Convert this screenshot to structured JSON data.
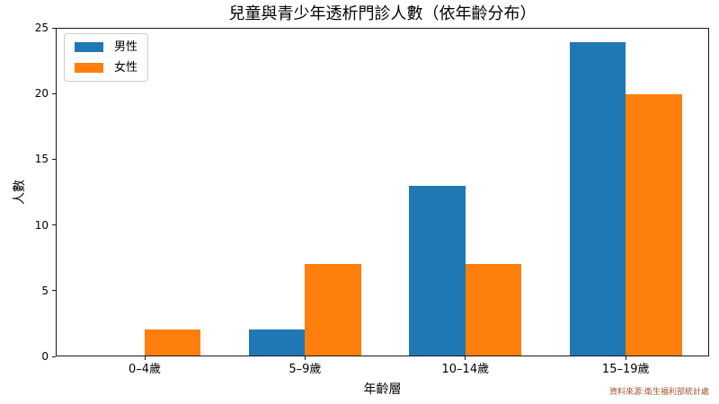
{
  "chart_data": {
    "type": "bar",
    "title": "兒童與青少年透析門診人數（依年齡分布）",
    "categories": [
      "0–4歲",
      "5–9歲",
      "10–14歲",
      "15–19歲"
    ],
    "series": [
      {
        "name": "男性",
        "color": "#1f77b4",
        "values": [
          0,
          2,
          13,
          24
        ]
      },
      {
        "name": "女性",
        "color": "#ff7f0e",
        "values": [
          2,
          7,
          7,
          20
        ]
      }
    ],
    "xlabel": "年齡層",
    "ylabel": "人數",
    "ylim": [
      0,
      25
    ],
    "yticks": [
      0,
      5,
      10,
      15,
      20,
      25
    ],
    "legend_position": "upper left",
    "grid": false,
    "source_note": "資料來源:衛生福利部統計處",
    "source_color": "#a0522d",
    "axis_color": "#1a1a1a"
  }
}
